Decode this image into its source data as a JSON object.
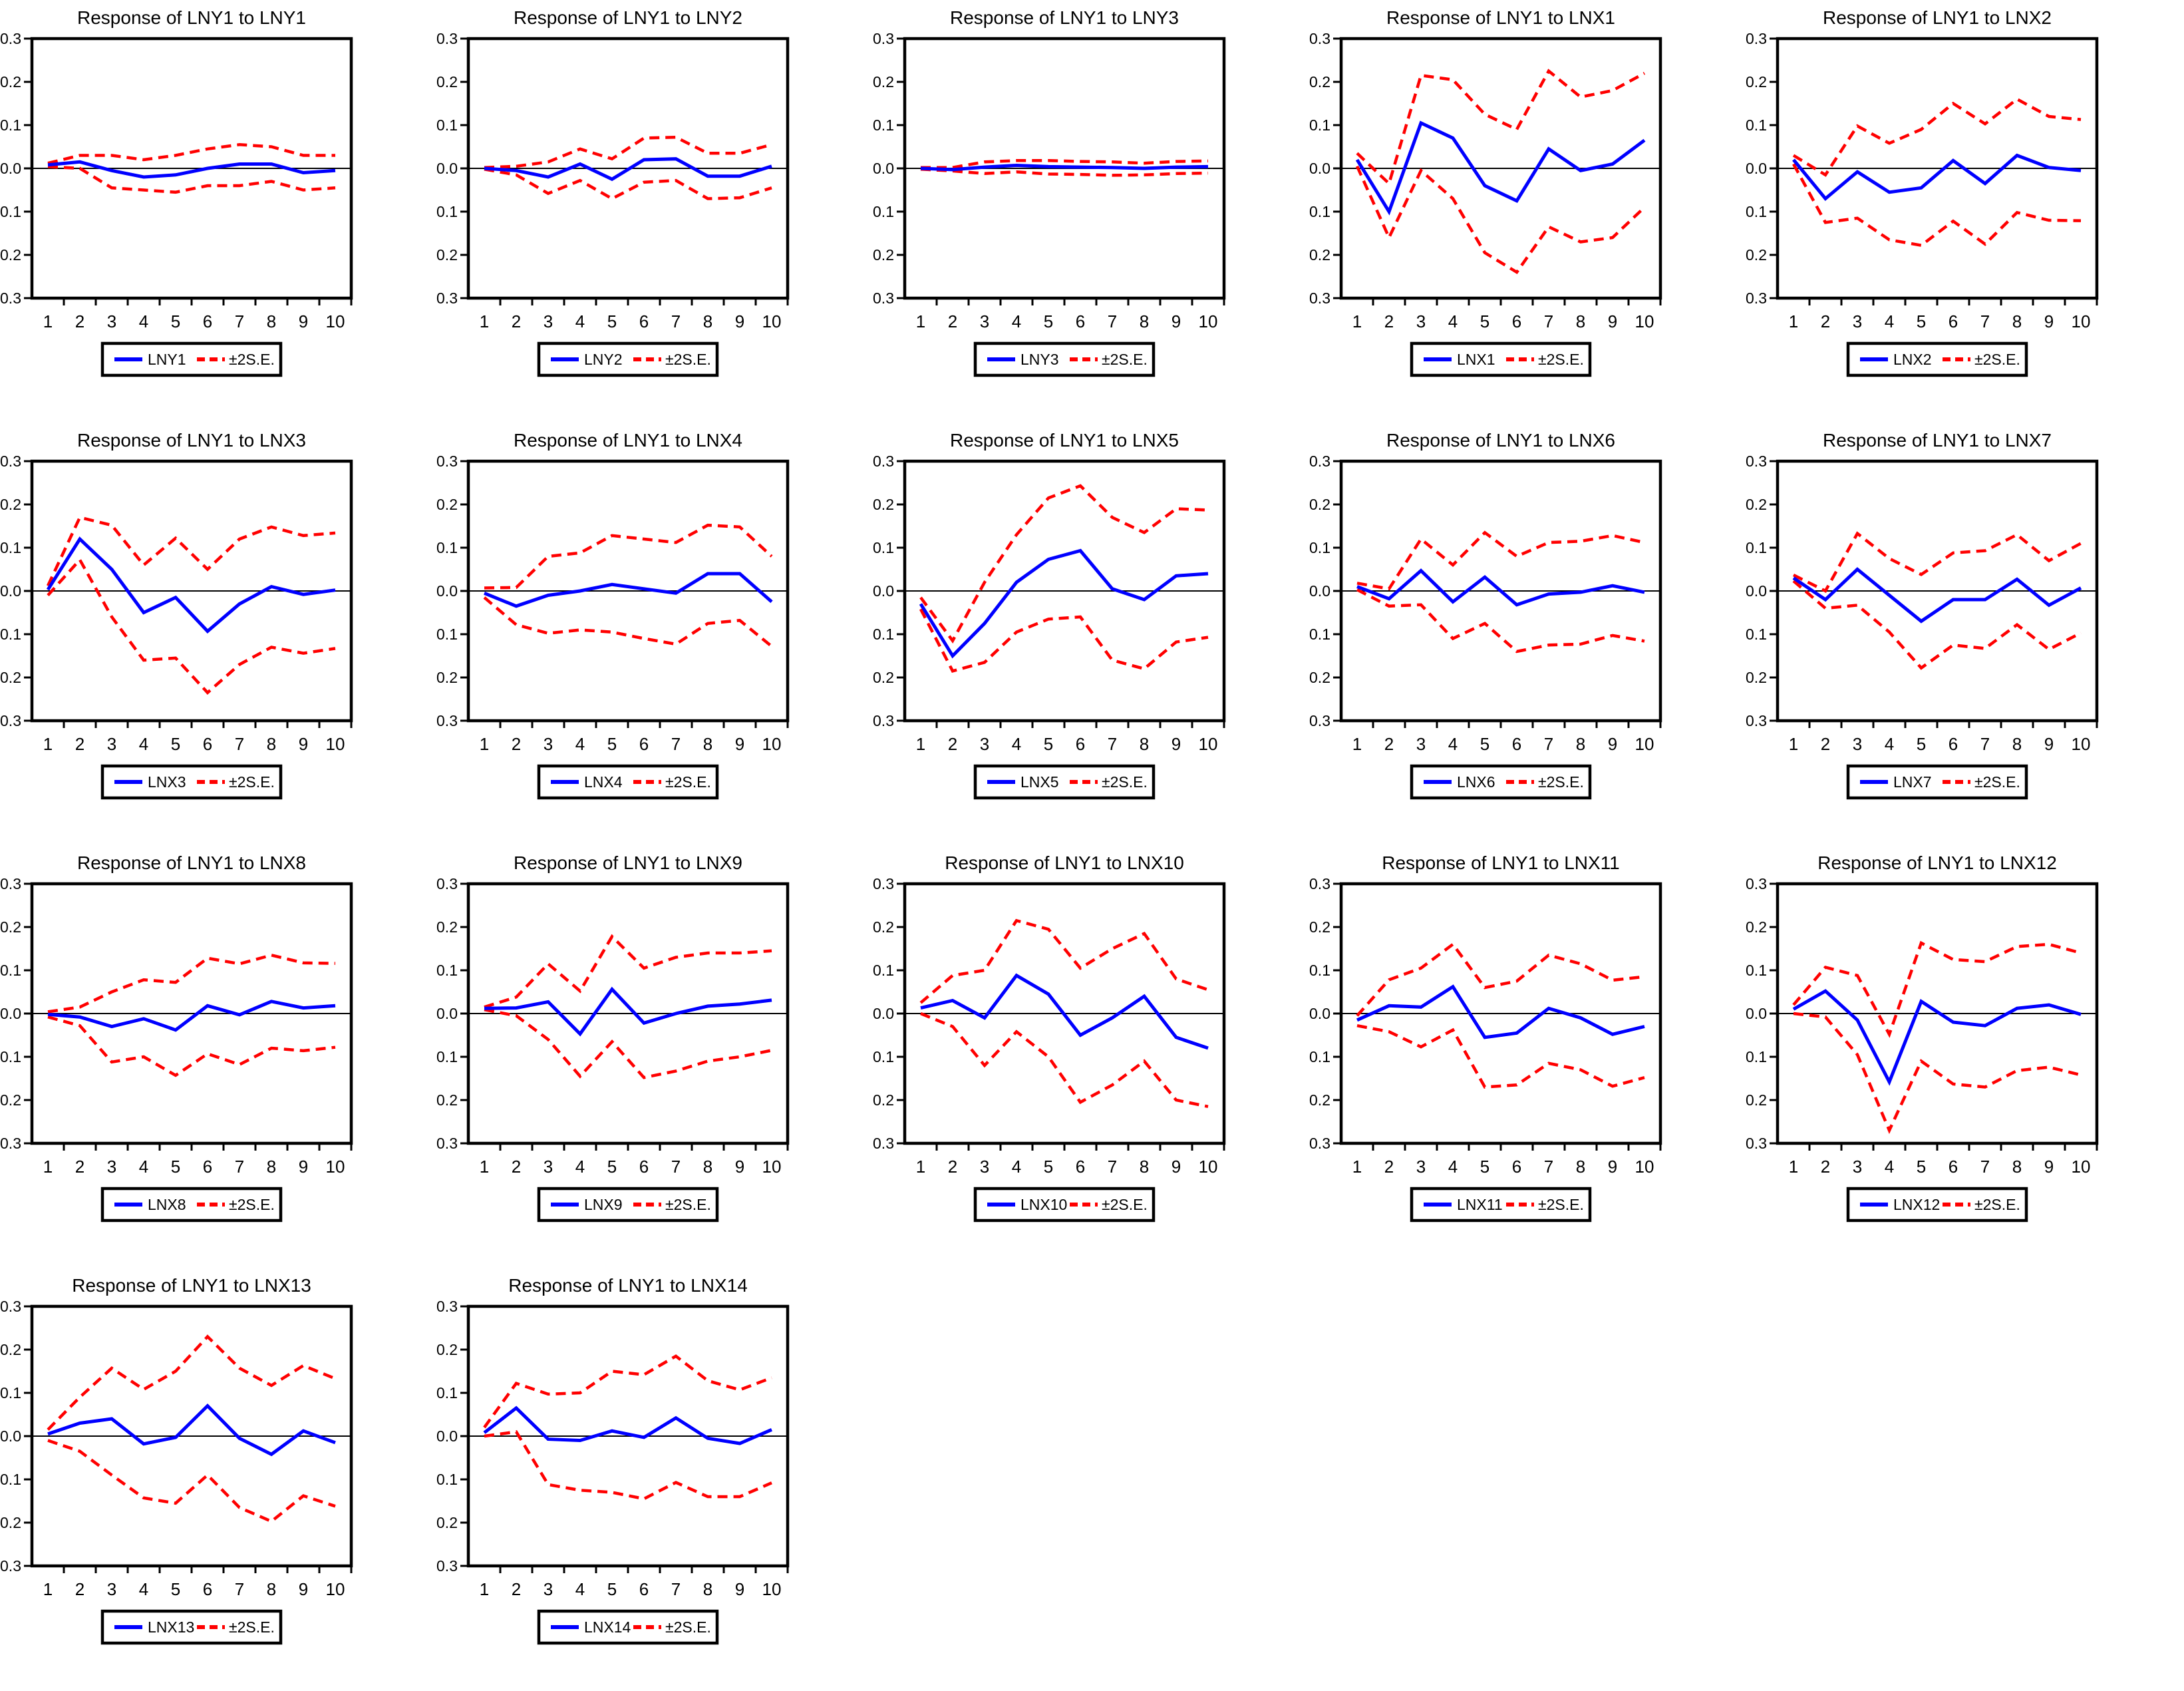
{
  "page": {
    "background": "#ffffff",
    "description": "Grid of VAR impulse response charts: Response of LNY1 to innovations, with ±2 S.E. bands"
  },
  "colors": {
    "response_line": "#0000ff",
    "se_band": "#ff0000",
    "axis": "#000000",
    "plot_background": "#ffffff"
  },
  "axes": {
    "x_ticks": [
      1,
      2,
      3,
      4,
      5,
      6,
      7,
      8,
      9,
      10
    ],
    "y_ticks": [
      "0.3",
      "0.2",
      "0.1",
      "0.0",
      "-0.1",
      "-0.2",
      "-0.3"
    ],
    "ylim": [
      -0.3,
      0.3
    ],
    "grid": "off",
    "legend_position": "below"
  },
  "legend_se_label": "±2S.E.",
  "chart_data": [
    {
      "type": "line",
      "title": "Response of LNY1 to LNY1",
      "response_label": "LNY1",
      "response": [
        0.008,
        0.015,
        -0.005,
        -0.02,
        -0.015,
        0.0,
        0.01,
        0.01,
        -0.01,
        -0.005
      ],
      "upper_band": [
        0.012,
        0.03,
        0.03,
        0.02,
        0.03,
        0.045,
        0.055,
        0.05,
        0.03,
        0.03
      ],
      "lower_band": [
        0.004,
        0.0,
        -0.045,
        -0.05,
        -0.055,
        -0.04,
        -0.04,
        -0.03,
        -0.05,
        -0.045
      ]
    },
    {
      "type": "line",
      "title": "Response of LNY1 to LNY2",
      "response_label": "LNY2",
      "response": [
        0.0,
        -0.005,
        -0.02,
        0.01,
        -0.025,
        0.02,
        0.022,
        -0.018,
        -0.018,
        0.005
      ],
      "upper_band": [
        0.002,
        0.005,
        0.015,
        0.045,
        0.022,
        0.07,
        0.072,
        0.035,
        0.035,
        0.055
      ],
      "lower_band": [
        -0.002,
        -0.015,
        -0.058,
        -0.028,
        -0.07,
        -0.032,
        -0.028,
        -0.07,
        -0.068,
        -0.045
      ]
    },
    {
      "type": "line",
      "title": "Response of LNY1 to LNY3",
      "response_label": "LNY3",
      "response": [
        0.0,
        -0.003,
        0.003,
        0.007,
        0.004,
        0.003,
        0.002,
        0.0,
        0.003,
        0.004
      ],
      "upper_band": [
        0.002,
        0.002,
        0.015,
        0.018,
        0.018,
        0.016,
        0.015,
        0.012,
        0.016,
        0.017
      ],
      "lower_band": [
        -0.002,
        -0.006,
        -0.012,
        -0.008,
        -0.013,
        -0.014,
        -0.016,
        -0.015,
        -0.012,
        -0.011
      ]
    },
    {
      "type": "line",
      "title": "Response of LNY1 to LNX1",
      "response_label": "LNX1",
      "response": [
        0.02,
        -0.1,
        0.105,
        0.07,
        -0.04,
        -0.075,
        0.045,
        -0.005,
        0.01,
        0.065
      ],
      "upper_band": [
        0.035,
        -0.035,
        0.215,
        0.205,
        0.125,
        0.09,
        0.225,
        0.165,
        0.18,
        0.22
      ],
      "lower_band": [
        0.005,
        -0.16,
        -0.005,
        -0.07,
        -0.195,
        -0.24,
        -0.135,
        -0.17,
        -0.16,
        -0.09
      ]
    },
    {
      "type": "line",
      "title": "Response of LNY1 to LNX2",
      "response_label": "LNX2",
      "response": [
        0.02,
        -0.07,
        -0.008,
        -0.055,
        -0.045,
        0.018,
        -0.035,
        0.03,
        0.002,
        -0.005
      ],
      "upper_band": [
        0.03,
        -0.015,
        0.098,
        0.058,
        0.09,
        0.15,
        0.103,
        0.16,
        0.12,
        0.113
      ],
      "lower_band": [
        0.01,
        -0.125,
        -0.115,
        -0.165,
        -0.178,
        -0.122,
        -0.175,
        -0.102,
        -0.12,
        -0.121
      ]
    },
    {
      "type": "line",
      "title": "Response of LNY1 to LNX3",
      "response_label": "LNX3",
      "response": [
        0.003,
        0.12,
        0.05,
        -0.05,
        -0.015,
        -0.093,
        -0.03,
        0.01,
        -0.008,
        0.002
      ],
      "upper_band": [
        0.012,
        0.17,
        0.152,
        0.06,
        0.122,
        0.05,
        0.12,
        0.148,
        0.128,
        0.134
      ],
      "lower_band": [
        -0.01,
        0.072,
        -0.06,
        -0.16,
        -0.155,
        -0.235,
        -0.17,
        -0.13,
        -0.144,
        -0.133
      ]
    },
    {
      "type": "line",
      "title": "Response of LNY1 to LNX4",
      "response_label": "LNX4",
      "response": [
        -0.005,
        -0.035,
        -0.01,
        0.0,
        0.015,
        0.005,
        -0.005,
        0.04,
        0.04,
        -0.025
      ],
      "upper_band": [
        0.007,
        0.008,
        0.08,
        0.088,
        0.128,
        0.12,
        0.112,
        0.152,
        0.148,
        0.08
      ],
      "lower_band": [
        -0.015,
        -0.078,
        -0.098,
        -0.09,
        -0.095,
        -0.11,
        -0.123,
        -0.075,
        -0.068,
        -0.128
      ]
    },
    {
      "type": "line",
      "title": "Response of LNY1 to LNX5",
      "response_label": "LNX5",
      "response": [
        -0.03,
        -0.15,
        -0.075,
        0.02,
        0.073,
        0.093,
        0.005,
        -0.02,
        0.035,
        0.04
      ],
      "upper_band": [
        -0.015,
        -0.115,
        0.02,
        0.13,
        0.215,
        0.243,
        0.17,
        0.135,
        0.19,
        0.187
      ],
      "lower_band": [
        -0.042,
        -0.185,
        -0.165,
        -0.095,
        -0.065,
        -0.06,
        -0.16,
        -0.18,
        -0.118,
        -0.107
      ]
    },
    {
      "type": "line",
      "title": "Response of LNY1 to LNX6",
      "response_label": "LNX6",
      "response": [
        0.01,
        -0.018,
        0.047,
        -0.025,
        0.032,
        -0.032,
        -0.007,
        -0.003,
        0.012,
        -0.003
      ],
      "upper_band": [
        0.018,
        0.005,
        0.12,
        0.06,
        0.135,
        0.08,
        0.112,
        0.115,
        0.128,
        0.112
      ],
      "lower_band": [
        0.003,
        -0.035,
        -0.032,
        -0.11,
        -0.075,
        -0.14,
        -0.125,
        -0.123,
        -0.103,
        -0.116
      ]
    },
    {
      "type": "line",
      "title": "Response of LNY1 to LNX7",
      "response_label": "LNX7",
      "response": [
        0.03,
        -0.02,
        0.05,
        -0.01,
        -0.07,
        -0.02,
        -0.02,
        0.027,
        -0.033,
        0.007
      ],
      "upper_band": [
        0.037,
        0.0,
        0.133,
        0.075,
        0.038,
        0.088,
        0.093,
        0.13,
        0.07,
        0.11
      ],
      "lower_band": [
        0.023,
        -0.04,
        -0.033,
        -0.095,
        -0.178,
        -0.125,
        -0.133,
        -0.078,
        -0.135,
        -0.097
      ]
    },
    {
      "type": "line",
      "title": "Response of LNY1 to LNX8",
      "response_label": "LNX8",
      "response": [
        -0.002,
        -0.008,
        -0.03,
        -0.012,
        -0.038,
        0.018,
        -0.003,
        0.028,
        0.013,
        0.018
      ],
      "upper_band": [
        0.004,
        0.015,
        0.05,
        0.078,
        0.072,
        0.128,
        0.115,
        0.135,
        0.117,
        0.116
      ],
      "lower_band": [
        -0.008,
        -0.028,
        -0.112,
        -0.1,
        -0.143,
        -0.093,
        -0.118,
        -0.08,
        -0.086,
        -0.078
      ]
    },
    {
      "type": "line",
      "title": "Response of LNY1 to LNX9",
      "response_label": "LNX9",
      "response": [
        0.012,
        0.013,
        0.027,
        -0.047,
        0.056,
        -0.022,
        0.0,
        0.017,
        0.022,
        0.031
      ],
      "upper_band": [
        0.015,
        0.038,
        0.115,
        0.052,
        0.178,
        0.105,
        0.13,
        0.14,
        0.14,
        0.145
      ],
      "lower_band": [
        0.009,
        -0.005,
        -0.06,
        -0.145,
        -0.065,
        -0.148,
        -0.133,
        -0.11,
        -0.1,
        -0.085
      ]
    },
    {
      "type": "line",
      "title": "Response of LNY1 to LNX10",
      "response_label": "LNX10",
      "response": [
        0.013,
        0.03,
        -0.01,
        0.088,
        0.045,
        -0.05,
        -0.01,
        0.04,
        -0.055,
        -0.08
      ],
      "upper_band": [
        0.025,
        0.088,
        0.1,
        0.215,
        0.195,
        0.105,
        0.15,
        0.185,
        0.08,
        0.055
      ],
      "lower_band": [
        0.0,
        -0.03,
        -0.12,
        -0.042,
        -0.1,
        -0.205,
        -0.165,
        -0.11,
        -0.2,
        -0.215
      ]
    },
    {
      "type": "line",
      "title": "Response of LNY1 to LNX11",
      "response_label": "LNX11",
      "response": [
        -0.015,
        0.018,
        0.015,
        0.062,
        -0.055,
        -0.045,
        0.012,
        -0.01,
        -0.048,
        -0.03
      ],
      "upper_band": [
        -0.005,
        0.078,
        0.105,
        0.16,
        0.06,
        0.075,
        0.135,
        0.115,
        0.077,
        0.085
      ],
      "lower_band": [
        -0.028,
        -0.042,
        -0.077,
        -0.038,
        -0.17,
        -0.165,
        -0.115,
        -0.13,
        -0.168,
        -0.148
      ]
    },
    {
      "type": "line",
      "title": "Response of LNY1 to LNX12",
      "response_label": "LNX12",
      "response": [
        0.01,
        0.052,
        -0.015,
        -0.158,
        0.028,
        -0.02,
        -0.028,
        0.012,
        0.02,
        -0.002
      ],
      "upper_band": [
        0.02,
        0.107,
        0.088,
        -0.048,
        0.163,
        0.125,
        0.12,
        0.155,
        0.16,
        0.14
      ],
      "lower_band": [
        0.0,
        -0.008,
        -0.095,
        -0.27,
        -0.11,
        -0.163,
        -0.17,
        -0.132,
        -0.124,
        -0.142
      ]
    },
    {
      "type": "line",
      "title": "Response of LNY1 to LNX13",
      "response_label": "LNX13",
      "response": [
        0.005,
        0.03,
        0.04,
        -0.018,
        -0.003,
        0.07,
        -0.005,
        -0.042,
        0.012,
        -0.015
      ],
      "upper_band": [
        0.015,
        0.09,
        0.157,
        0.108,
        0.15,
        0.23,
        0.157,
        0.117,
        0.163,
        0.133
      ],
      "lower_band": [
        -0.01,
        -0.035,
        -0.09,
        -0.143,
        -0.155,
        -0.09,
        -0.165,
        -0.197,
        -0.138,
        -0.162
      ]
    },
    {
      "type": "line",
      "title": "Response of LNY1 to LNX14",
      "response_label": "LNX14",
      "response": [
        0.008,
        0.065,
        -0.007,
        -0.01,
        0.012,
        -0.003,
        0.042,
        -0.005,
        -0.017,
        0.015
      ],
      "upper_band": [
        0.02,
        0.122,
        0.097,
        0.1,
        0.15,
        0.142,
        0.185,
        0.128,
        0.107,
        0.135
      ],
      "lower_band": [
        0.0,
        0.01,
        -0.112,
        -0.125,
        -0.13,
        -0.145,
        -0.107,
        -0.14,
        -0.14,
        -0.108
      ]
    }
  ]
}
